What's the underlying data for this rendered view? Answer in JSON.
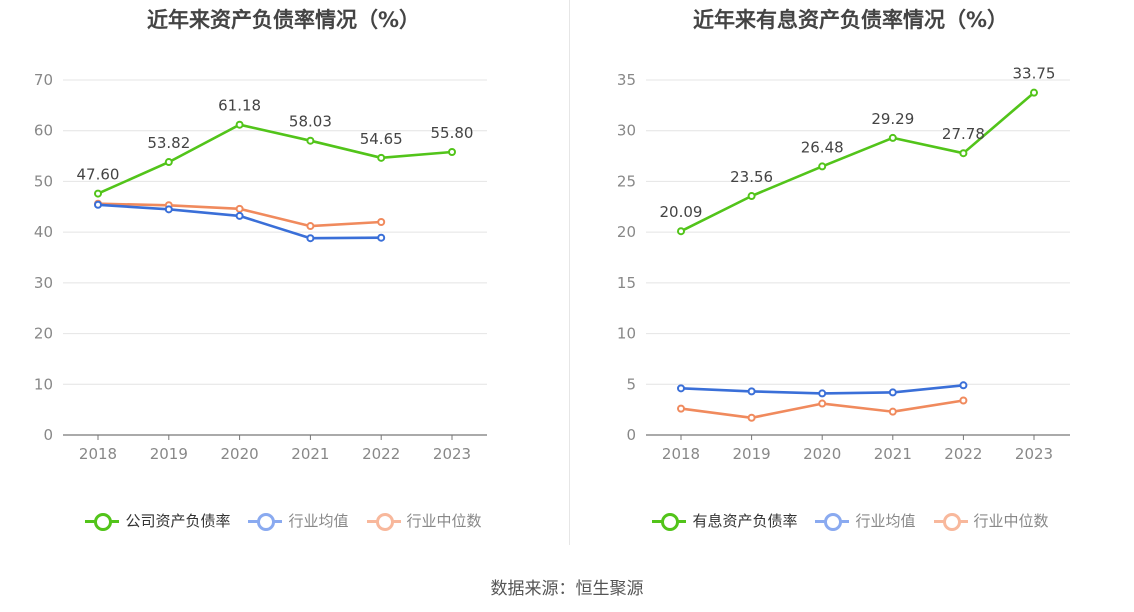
{
  "source": "数据来源：恒生聚源",
  "chart_data": [
    {
      "type": "line",
      "title": "近年来资产负债率情况（%）",
      "categories": [
        "2018",
        "2019",
        "2020",
        "2021",
        "2022",
        "2023"
      ],
      "ylim": [
        0,
        70
      ],
      "yticks": [
        0,
        10,
        20,
        30,
        40,
        50,
        60,
        70
      ],
      "grid": true,
      "legend_position": "bottom",
      "series": [
        {
          "name": "公司资产负债率",
          "color": "#52c41a",
          "values": [
            47.6,
            53.82,
            61.18,
            58.03,
            54.65,
            55.8
          ],
          "labels": [
            "47.60",
            "53.82",
            "61.18",
            "58.03",
            "54.65",
            "55.80"
          ],
          "legend_style": "strong"
        },
        {
          "name": "行业均值",
          "color": "#3a6fd8",
          "values": [
            45.4,
            44.5,
            43.2,
            38.8,
            38.9,
            null
          ],
          "labels": null,
          "legend_style": "muted",
          "legend_color": "#8aaaf0"
        },
        {
          "name": "行业中位数",
          "color": "#f08a5d",
          "values": [
            45.6,
            45.3,
            44.6,
            41.2,
            42.0,
            null
          ],
          "labels": null,
          "legend_style": "muted",
          "legend_color": "#f8b89c"
        }
      ]
    },
    {
      "type": "line",
      "title": "近年来有息资产负债率情况（%）",
      "categories": [
        "2018",
        "2019",
        "2020",
        "2021",
        "2022",
        "2023"
      ],
      "ylim": [
        0,
        35
      ],
      "yticks": [
        0,
        5,
        10,
        15,
        20,
        25,
        30,
        35
      ],
      "grid": true,
      "legend_position": "bottom",
      "series": [
        {
          "name": "有息资产负债率",
          "color": "#52c41a",
          "values": [
            20.09,
            23.56,
            26.48,
            29.29,
            27.78,
            33.75
          ],
          "labels": [
            "20.09",
            "23.56",
            "26.48",
            "29.29",
            "27.78",
            "33.75"
          ],
          "legend_style": "strong"
        },
        {
          "name": "行业均值",
          "color": "#3a6fd8",
          "values": [
            4.6,
            4.3,
            4.1,
            4.2,
            4.9,
            null
          ],
          "labels": null,
          "legend_style": "muted",
          "legend_color": "#8aaaf0"
        },
        {
          "name": "行业中位数",
          "color": "#f08a5d",
          "values": [
            2.6,
            1.7,
            3.1,
            2.3,
            3.4,
            null
          ],
          "labels": null,
          "legend_style": "muted",
          "legend_color": "#f8b89c"
        }
      ]
    }
  ]
}
